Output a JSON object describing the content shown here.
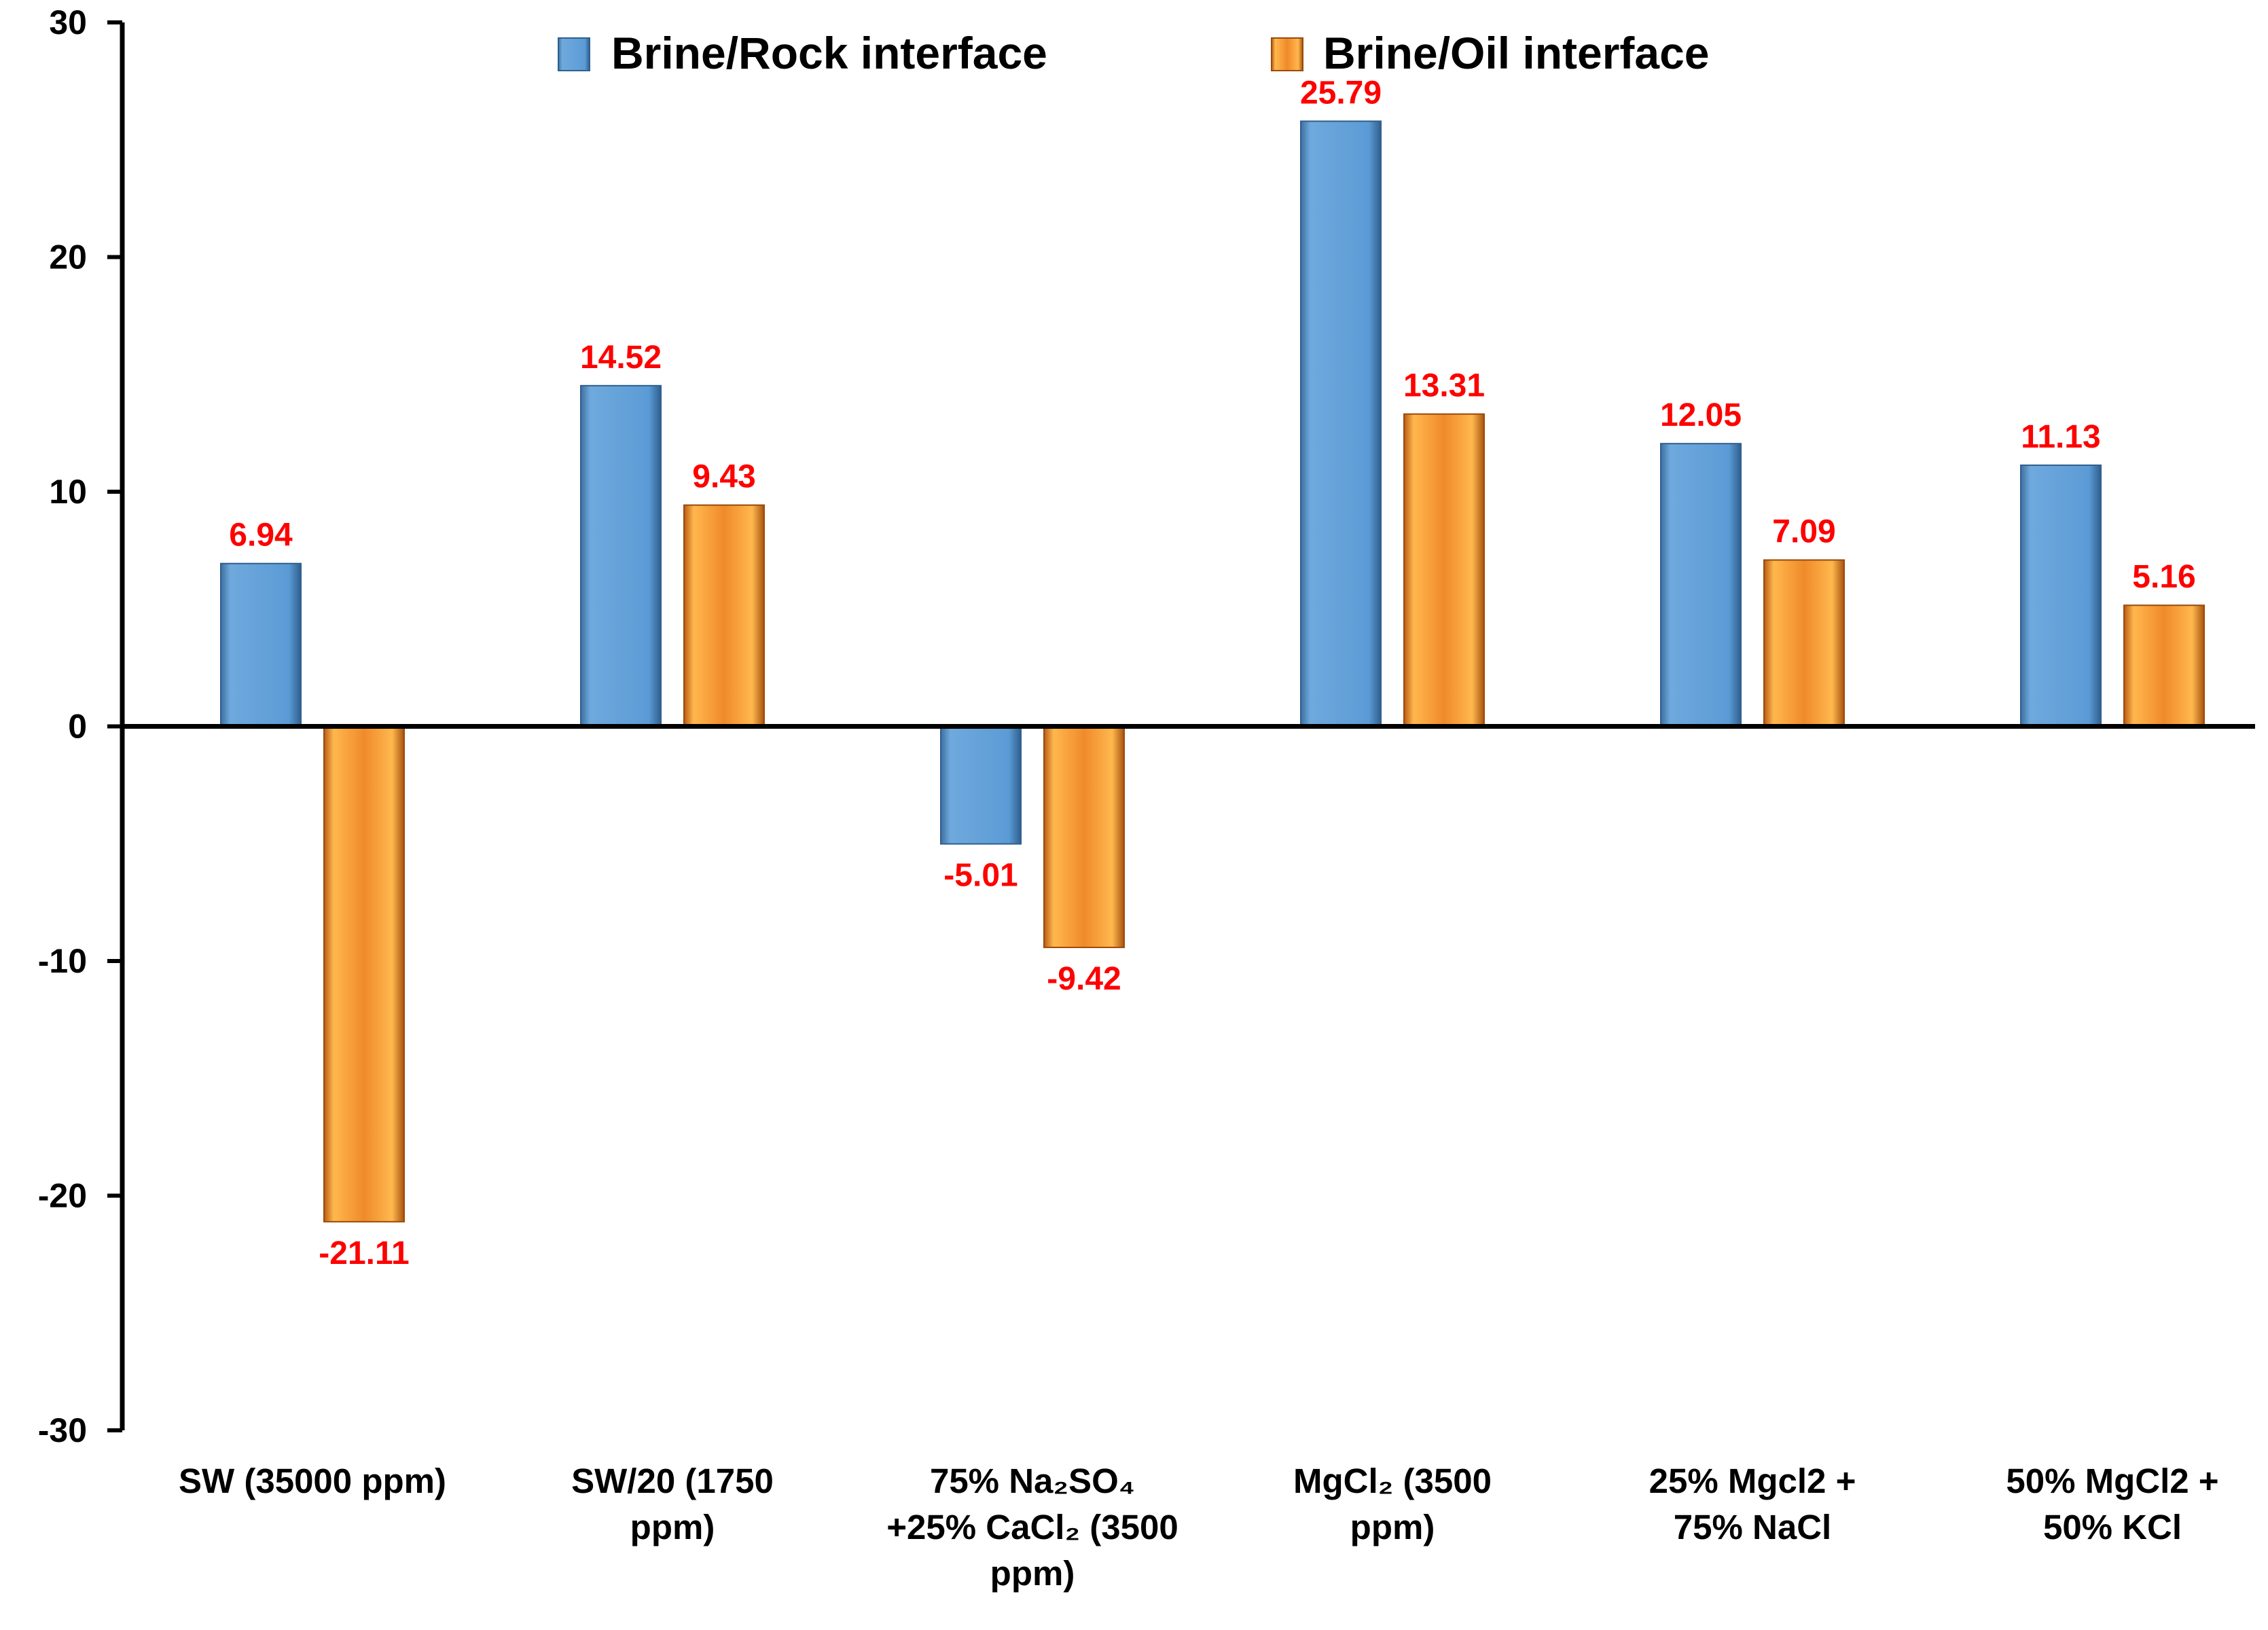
{
  "chart_data": {
    "type": "bar",
    "title": "",
    "xlabel": "",
    "ylabel": "",
    "ylim": [
      -30,
      30
    ],
    "yticks": [
      30,
      20,
      10,
      0,
      -10,
      -20,
      -30
    ],
    "grid": false,
    "legend_position": "top",
    "categories": [
      [
        "SW (35000 ppm)"
      ],
      [
        "SW/20 (1750",
        "ppm)"
      ],
      [
        "75% Na₂SO₄",
        "+25% CaCl₂ (3500",
        "ppm)"
      ],
      [
        "MgCl₂ (3500",
        "ppm)"
      ],
      [
        "25% Mgcl2 +",
        "75% NaCl"
      ],
      [
        "50% MgCl2 +",
        "50% KCl"
      ]
    ],
    "series": [
      {
        "name": "Brine/Rock interface",
        "color": "#5b9bd5",
        "values": [
          6.94,
          14.52,
          -5.01,
          25.79,
          12.05,
          11.13
        ],
        "labels": [
          "6.94",
          "14.52",
          "-5.01",
          "25.79",
          "12.05",
          "11.13"
        ]
      },
      {
        "name": "Brine/Oil interface",
        "color": "#ed7d31",
        "values": [
          -21.11,
          9.43,
          -9.42,
          13.31,
          7.09,
          5.16
        ],
        "labels": [
          "-21.11",
          "9.43",
          "-9.42",
          "13.31",
          "7.09",
          "5.16"
        ]
      }
    ],
    "colors": {
      "data_label": "#ff0000",
      "axis": "#000000"
    }
  }
}
